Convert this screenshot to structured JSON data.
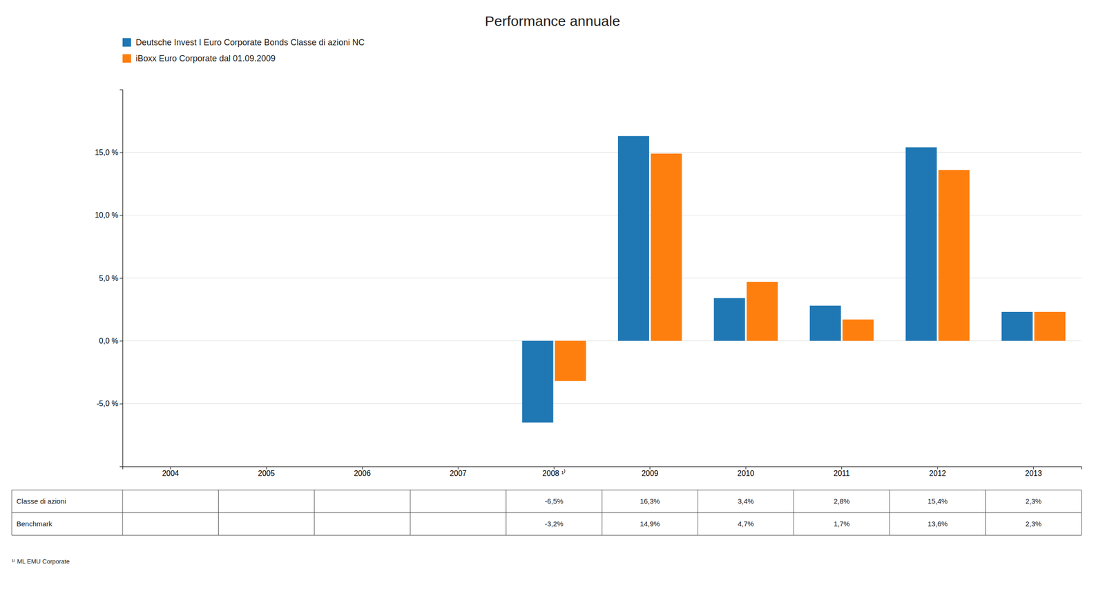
{
  "chart_data": {
    "type": "bar",
    "title": "Performance annuale",
    "categories": [
      "2004",
      "2005",
      "2006",
      "2007",
      "2008 ¹⁾",
      "2009",
      "2010",
      "2011",
      "2012",
      "2013"
    ],
    "series": [
      {
        "name": "Deutsche Invest I Euro Corporate Bonds Classe di azioni NC",
        "table_label": "Classe di azioni",
        "values": [
          null,
          null,
          null,
          null,
          -6.5,
          16.3,
          3.4,
          2.8,
          15.4,
          2.3
        ],
        "value_labels": [
          null,
          null,
          null,
          null,
          "-6,5%",
          "16,3%",
          "3,4%",
          "2,8%",
          "15,4%",
          "2,3%"
        ]
      },
      {
        "name": "iBoxx Euro Corporate dal 01.09.2009",
        "table_label": "Benchmark",
        "values": [
          null,
          null,
          null,
          null,
          -3.2,
          14.9,
          4.7,
          1.7,
          13.6,
          2.3
        ],
        "value_labels": [
          null,
          null,
          null,
          null,
          "-3,2%",
          "14,9%",
          "4,7%",
          "1,7%",
          "13,6%",
          "2,3%"
        ]
      }
    ],
    "ylim": [
      -10,
      20
    ],
    "yticks": [
      {
        "value": -5.0,
        "label": "-5,0 %"
      },
      {
        "value": 0.0,
        "label": "0,0 %"
      },
      {
        "value": 5.0,
        "label": "5,0 %"
      },
      {
        "value": 10.0,
        "label": "10,0 %"
      },
      {
        "value": 15.0,
        "label": "15,0 %"
      }
    ],
    "grid": true,
    "footnote": "¹⁾  ML  EMU  Corporate"
  }
}
